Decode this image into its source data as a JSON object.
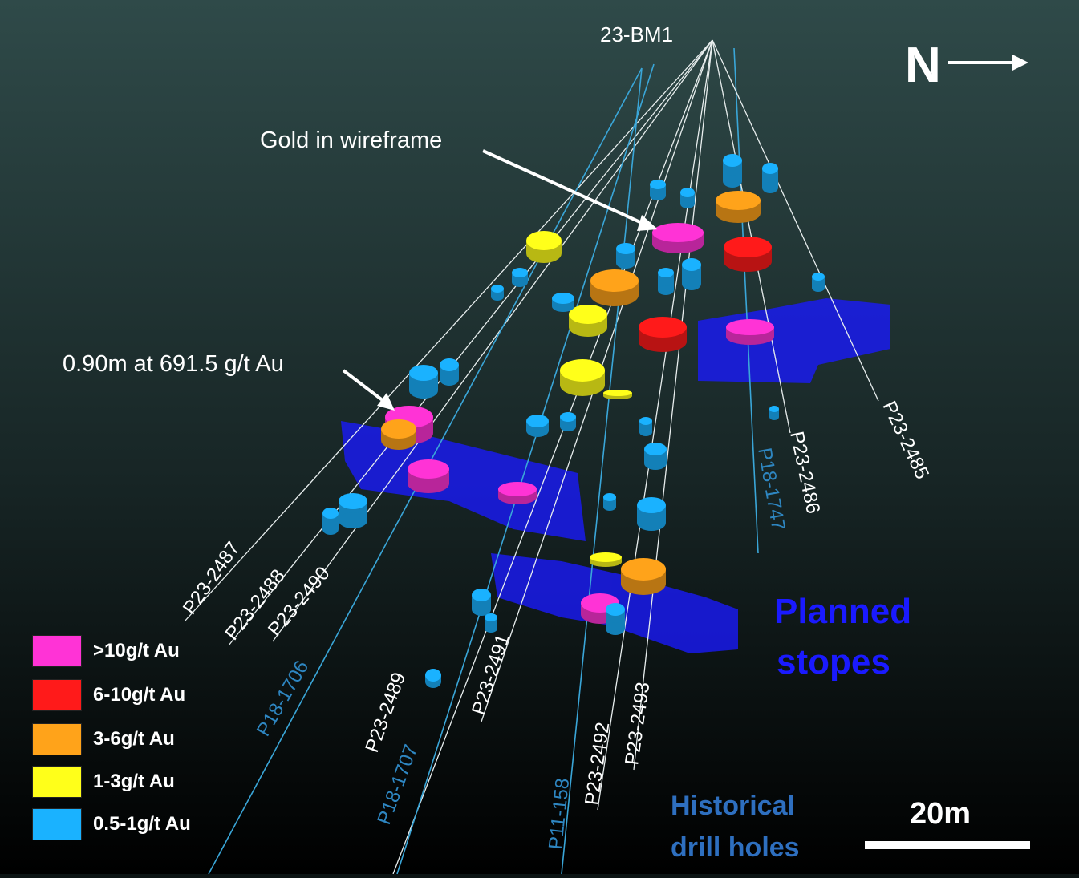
{
  "collar_label": "23-BM1",
  "north_arrow": {
    "letter": "N"
  },
  "callouts": {
    "gold_in_wireframe": "Gold in wireframe",
    "intercept": "0.90m at 691.5 g/t Au"
  },
  "stopes_label": [
    "Planned",
    "stopes"
  ],
  "historical_label": [
    "Historical",
    "drill holes"
  ],
  "scale_bar": {
    "label": "20m"
  },
  "drill_holes": [
    {
      "id": "P23-2487",
      "type": "planned"
    },
    {
      "id": "P23-2488",
      "type": "planned"
    },
    {
      "id": "P23-2490",
      "type": "planned"
    },
    {
      "id": "P18-1706",
      "type": "historical"
    },
    {
      "id": "P23-2489",
      "type": "planned"
    },
    {
      "id": "P18-1707",
      "type": "historical"
    },
    {
      "id": "P23-2491",
      "type": "planned"
    },
    {
      "id": "P11-158",
      "type": "historical"
    },
    {
      "id": "P23-2492",
      "type": "planned"
    },
    {
      "id": "P23-2493",
      "type": "planned"
    },
    {
      "id": "P18-1747",
      "type": "historical"
    },
    {
      "id": "P23-2486",
      "type": "planned"
    },
    {
      "id": "P23-2485",
      "type": "planned"
    }
  ],
  "legend": [
    {
      "label": ">10g/t Au",
      "color": "#ff33d6"
    },
    {
      "label": "6-10g/t Au",
      "color": "#ff1a1a"
    },
    {
      "label": "3-6g/t Au",
      "color": "#ffa31a"
    },
    {
      "label": "1-3g/t Au",
      "color": "#ffff1a"
    },
    {
      "label": "0.5-1g/t Au",
      "color": "#1ab2ff"
    }
  ],
  "colors": {
    "planned_hole_label": "#ffffff",
    "historical_hole_label": "#2e86c1",
    "stopes": "#1a1aff",
    "background_top": "#2f4a49",
    "background_bottom": "#000000"
  }
}
